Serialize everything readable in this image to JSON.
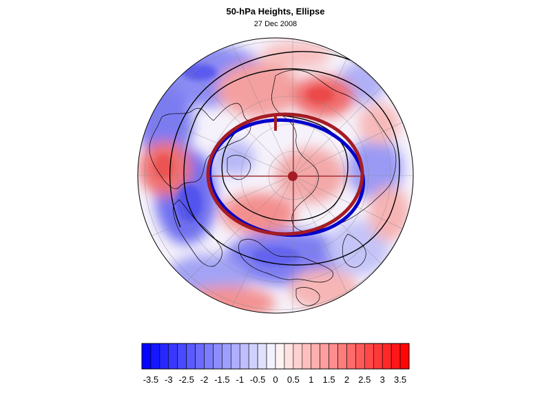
{
  "title": "50-hPa Heights, Ellipse",
  "subtitle": "27 Dec 2008",
  "colors": {
    "negative": "#0000ff",
    "positive": "#ff0000",
    "ellipse_observed": "#0000cc",
    "ellipse_climatology": "#a51c24",
    "coastline": "#000000",
    "gridline": "#888888"
  },
  "projection": "polar-stereographic-north",
  "colorbar": {
    "min": -3.75,
    "max": 3.75,
    "step": 0.25,
    "tick_labels": [
      "-3.5",
      "-3",
      "-2.5",
      "-2",
      "-1.5",
      "-1",
      "-0.5",
      "0",
      "0.5",
      "1",
      "1.5",
      "2",
      "2.5",
      "3",
      "3.5"
    ],
    "tick_values": [
      -3.5,
      -3,
      -2.5,
      -2,
      -1.5,
      -1,
      -0.5,
      0,
      0.5,
      1,
      1.5,
      2,
      2.5,
      3,
      3.5
    ]
  }
}
